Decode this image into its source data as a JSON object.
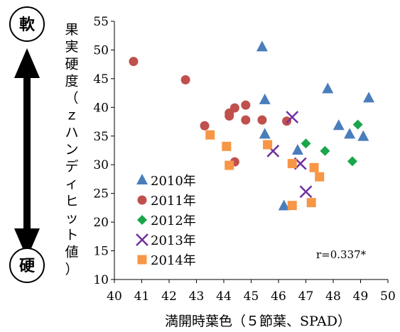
{
  "chart_data": {
    "type": "scatter",
    "xlabel": "満開時葉色（５節葉、SPAD）",
    "ylabel": "果実硬度（ｚハンディヒット値）",
    "xlim": [
      40,
      50
    ],
    "ylim": [
      10,
      55
    ],
    "xticks": [
      40,
      41,
      42,
      43,
      44,
      45,
      46,
      47,
      48,
      49,
      50
    ],
    "yticks": [
      10,
      15,
      20,
      25,
      30,
      35,
      40,
      45,
      50,
      55
    ],
    "grid": false,
    "legend": "left",
    "annotation": "r=0.337*",
    "side_labels": {
      "top": "軟",
      "bottom": "硬"
    },
    "series": [
      {
        "name": "2010年",
        "marker": "triangle",
        "color": "#4a7ebb",
        "points": [
          [
            45.4,
            50.5
          ],
          [
            45.5,
            41.3
          ],
          [
            47.8,
            43.2
          ],
          [
            49.3,
            41.6
          ],
          [
            48.2,
            36.8
          ],
          [
            48.6,
            35.3
          ],
          [
            49.1,
            34.9
          ],
          [
            45.5,
            35.3
          ],
          [
            46.7,
            32.5
          ],
          [
            46.2,
            22.8
          ]
        ]
      },
      {
        "name": "2011年",
        "marker": "circle",
        "color": "#c0504d",
        "points": [
          [
            40.7,
            48.0
          ],
          [
            42.6,
            44.8
          ],
          [
            43.3,
            36.8
          ],
          [
            44.2,
            38.5
          ],
          [
            44.2,
            39.0
          ],
          [
            44.4,
            39.9
          ],
          [
            44.8,
            40.4
          ],
          [
            44.8,
            37.8
          ],
          [
            45.4,
            37.8
          ],
          [
            46.3,
            37.6
          ],
          [
            44.4,
            30.5
          ]
        ]
      },
      {
        "name": "2012年",
        "marker": "diamond",
        "color": "#1aa64a",
        "points": [
          [
            47.0,
            33.7
          ],
          [
            47.7,
            32.4
          ],
          [
            48.9,
            37.0
          ],
          [
            48.7,
            30.6
          ]
        ]
      },
      {
        "name": "2013年",
        "marker": "cross",
        "color": "#7030a0",
        "points": [
          [
            46.5,
            38.3
          ],
          [
            45.8,
            32.4
          ],
          [
            46.8,
            30.2
          ],
          [
            47.0,
            25.3
          ]
        ]
      },
      {
        "name": "2014年",
        "marker": "square",
        "color": "#f79646",
        "points": [
          [
            43.5,
            35.2
          ],
          [
            44.1,
            33.2
          ],
          [
            44.2,
            29.9
          ],
          [
            45.6,
            33.5
          ],
          [
            46.5,
            30.2
          ],
          [
            47.3,
            29.5
          ],
          [
            47.5,
            27.9
          ],
          [
            46.5,
            22.9
          ],
          [
            47.2,
            23.4
          ]
        ]
      }
    ]
  }
}
